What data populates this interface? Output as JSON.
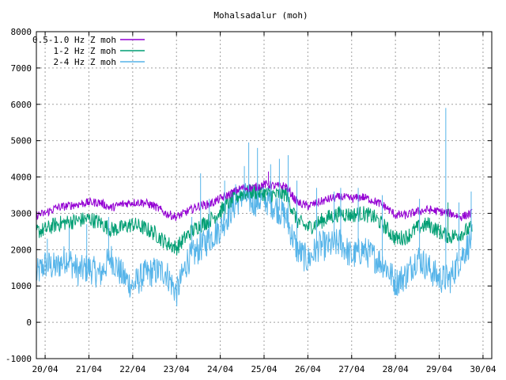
{
  "chart_data": {
    "type": "line",
    "title": "Mohalsadalur (moh)",
    "xlabel": "",
    "ylabel": "",
    "ylim": [
      -1000,
      8000
    ],
    "yticks": [
      -1000,
      0,
      1000,
      2000,
      3000,
      4000,
      5000,
      6000,
      7000,
      8000
    ],
    "xlim": [
      -0.2,
      10.2
    ],
    "xticks": [
      {
        "pos": 0,
        "label": "20/04"
      },
      {
        "pos": 1,
        "label": "21/04"
      },
      {
        "pos": 2,
        "label": "22/04"
      },
      {
        "pos": 3,
        "label": "23/04"
      },
      {
        "pos": 4,
        "label": "24/04"
      },
      {
        "pos": 5,
        "label": "25/04"
      },
      {
        "pos": 6,
        "label": "26/04"
      },
      {
        "pos": 7,
        "label": "27/04"
      },
      {
        "pos": 8,
        "label": "28/04"
      },
      {
        "pos": 9,
        "label": "29/04"
      },
      {
        "pos": 10,
        "label": "30/04"
      }
    ],
    "grid": true,
    "legend_position": "top-left",
    "series": [
      {
        "name": "0.5-1.0 Hz Z moh",
        "color": "#9400d3",
        "x": [
          -0.2,
          0.0,
          0.25,
          0.5,
          0.75,
          1.0,
          1.25,
          1.5,
          1.75,
          2.0,
          2.25,
          2.5,
          2.75,
          3.0,
          3.25,
          3.5,
          3.75,
          4.0,
          4.25,
          4.5,
          4.75,
          5.0,
          5.25,
          5.5,
          5.75,
          6.0,
          6.25,
          6.5,
          6.75,
          7.0,
          7.25,
          7.5,
          7.75,
          8.0,
          8.25,
          8.5,
          8.75,
          9.0,
          9.25,
          9.5,
          9.75
        ],
        "y": [
          2950,
          3000,
          3150,
          3200,
          3250,
          3300,
          3300,
          3150,
          3250,
          3300,
          3300,
          3200,
          3000,
          2900,
          3050,
          3200,
          3250,
          3400,
          3550,
          3700,
          3700,
          3800,
          3750,
          3750,
          3300,
          3200,
          3300,
          3400,
          3450,
          3400,
          3450,
          3350,
          3200,
          2950,
          2950,
          3050,
          3100,
          3050,
          3000,
          2900,
          3000
        ]
      },
      {
        "name": "1-2 Hz Z moh",
        "color": "#009e73",
        "x": [
          -0.2,
          0.0,
          0.25,
          0.5,
          0.75,
          1.0,
          1.25,
          1.5,
          1.75,
          2.0,
          2.25,
          2.5,
          2.75,
          3.0,
          3.25,
          3.5,
          3.75,
          4.0,
          4.25,
          4.5,
          4.75,
          5.0,
          5.25,
          5.5,
          5.75,
          6.0,
          6.25,
          6.5,
          6.75,
          7.0,
          7.25,
          7.5,
          7.75,
          8.0,
          8.25,
          8.5,
          8.75,
          9.0,
          9.25,
          9.5,
          9.75
        ],
        "y": [
          2500,
          2550,
          2700,
          2750,
          2800,
          2850,
          2750,
          2550,
          2600,
          2700,
          2600,
          2450,
          2200,
          2050,
          2400,
          2650,
          2800,
          3050,
          3350,
          3550,
          3600,
          3550,
          3500,
          3550,
          2800,
          2600,
          2750,
          2900,
          3000,
          2950,
          3000,
          2900,
          2650,
          2300,
          2350,
          2600,
          2700,
          2500,
          2350,
          2450,
          2600
        ]
      },
      {
        "name": "2-4 Hz Z moh",
        "color": "#56b4e9",
        "x": [
          -0.2,
          0.0,
          0.25,
          0.5,
          0.75,
          1.0,
          1.25,
          1.5,
          1.75,
          2.0,
          2.25,
          2.5,
          2.75,
          3.0,
          3.25,
          3.5,
          3.75,
          4.0,
          4.25,
          4.5,
          4.75,
          5.0,
          5.25,
          5.5,
          5.75,
          6.0,
          6.25,
          6.5,
          6.75,
          7.0,
          7.25,
          7.5,
          7.75,
          8.0,
          8.25,
          8.5,
          8.75,
          9.0,
          9.25,
          9.5,
          9.75
        ],
        "y": [
          1300,
          1600,
          1500,
          1800,
          1400,
          1500,
          1300,
          1800,
          1300,
          1000,
          1300,
          1400,
          1400,
          800,
          1700,
          2000,
          2300,
          2600,
          3100,
          3500,
          3300,
          3400,
          3200,
          2900,
          2000,
          1700,
          2100,
          2100,
          2200,
          1800,
          2000,
          1800,
          1600,
          1100,
          1300,
          1800,
          1500,
          1200,
          1200,
          1800,
          2300
        ]
      }
    ],
    "spikes": [
      {
        "series": 2,
        "x": 0.05,
        "y": 2300
      },
      {
        "series": 2,
        "x": 0.55,
        "y": 2600
      },
      {
        "series": 2,
        "x": 0.95,
        "y": 2700
      },
      {
        "series": 2,
        "x": 1.45,
        "y": 2900
      },
      {
        "series": 2,
        "x": 3.35,
        "y": 2900
      },
      {
        "series": 2,
        "x": 3.55,
        "y": 4100
      },
      {
        "series": 2,
        "x": 3.75,
        "y": 3400
      },
      {
        "series": 2,
        "x": 4.1,
        "y": 3900
      },
      {
        "series": 2,
        "x": 4.35,
        "y": 3800
      },
      {
        "series": 2,
        "x": 4.55,
        "y": 4300
      },
      {
        "series": 2,
        "x": 4.65,
        "y": 4950
      },
      {
        "series": 2,
        "x": 4.85,
        "y": 4800
      },
      {
        "series": 2,
        "x": 5.15,
        "y": 4350
      },
      {
        "series": 2,
        "x": 5.35,
        "y": 4500
      },
      {
        "series": 2,
        "x": 5.55,
        "y": 4600
      },
      {
        "series": 2,
        "x": 5.75,
        "y": 3900
      },
      {
        "series": 2,
        "x": 6.2,
        "y": 3700
      },
      {
        "series": 2,
        "x": 6.6,
        "y": 3600
      },
      {
        "series": 2,
        "x": 6.75,
        "y": 3700
      },
      {
        "series": 2,
        "x": 7.15,
        "y": 3700
      },
      {
        "series": 2,
        "x": 7.7,
        "y": 3500
      },
      {
        "series": 2,
        "x": 8.55,
        "y": 3400
      },
      {
        "series": 2,
        "x": 9.15,
        "y": 5900
      },
      {
        "series": 2,
        "x": 9.45,
        "y": 3300
      },
      {
        "series": 2,
        "x": 9.73,
        "y": 3600
      },
      {
        "series": 0,
        "x": 5.1,
        "y": 4150
      },
      {
        "series": 1,
        "x": 9.2,
        "y": 3300
      }
    ]
  }
}
